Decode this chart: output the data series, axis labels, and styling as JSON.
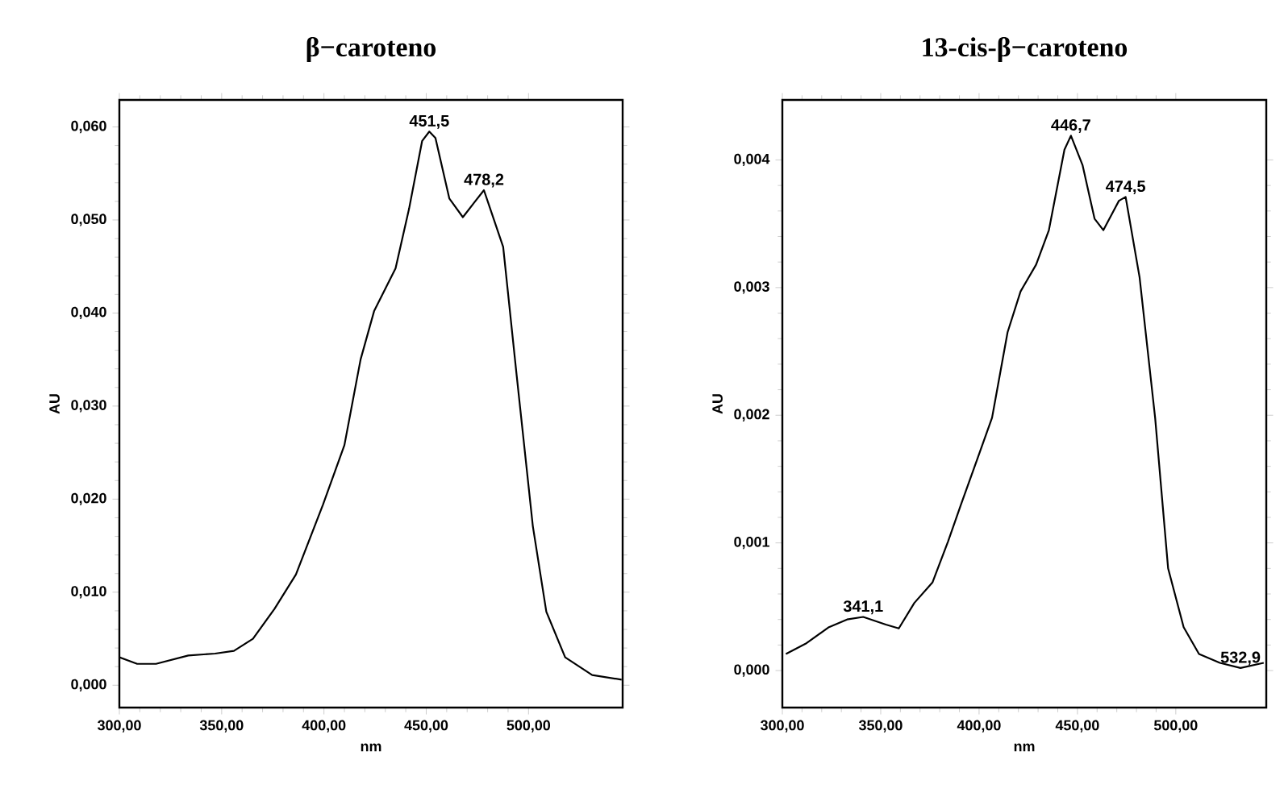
{
  "chart_data": [
    {
      "type": "line",
      "title": "β−caroteno",
      "xlabel": "nm",
      "ylabel": "AU",
      "xlim": [
        300,
        546
      ],
      "ylim": [
        -0.0024,
        0.0629
      ],
      "xticks": [
        {
          "value": 300,
          "label": "300,00"
        },
        {
          "value": 350,
          "label": "350,00"
        },
        {
          "value": 400,
          "label": "400,00"
        },
        {
          "value": 450,
          "label": "450,00"
        },
        {
          "value": 500,
          "label": "500,00"
        }
      ],
      "yticks": [
        {
          "value": 0,
          "label": "0,000"
        },
        {
          "value": 0.01,
          "label": "0,010"
        },
        {
          "value": 0.02,
          "label": "0,020"
        },
        {
          "value": 0.03,
          "label": "0,030"
        },
        {
          "value": 0.04,
          "label": "0,040"
        },
        {
          "value": 0.05,
          "label": "0,050"
        },
        {
          "value": 0.06,
          "label": "0,060"
        }
      ],
      "x": [
        300,
        308.7,
        317.9,
        333.7,
        346.8,
        356,
        365.3,
        375.8,
        386.3,
        399.5,
        410,
        417.9,
        424.5,
        435,
        441.6,
        448,
        451.5,
        454.5,
        461.3,
        467.9,
        473.2,
        478.2,
        487.6,
        494.2,
        502.1,
        508.7,
        517.9,
        531.1,
        545.5
      ],
      "series": [
        {
          "color": "#000000",
          "values": [
            0.003,
            0.0023,
            0.0023,
            0.0032,
            0.0034,
            0.0037,
            0.005,
            0.0082,
            0.0119,
            0.0194,
            0.0258,
            0.035,
            0.0402,
            0.0448,
            0.0512,
            0.0585,
            0.0595,
            0.0588,
            0.0523,
            0.0503,
            0.0518,
            0.0532,
            0.0471,
            0.0333,
            0.0171,
            0.0079,
            0.003,
            0.0011,
            0.0006
          ]
        }
      ],
      "annotations": [
        {
          "text": "451,5",
          "x": 451.5,
          "y": 0.0595
        },
        {
          "text": "478,2",
          "x": 478.2,
          "y": 0.0532
        }
      ]
    },
    {
      "type": "line",
      "title": "13-cis-β−caroteno",
      "xlabel": "nm",
      "ylabel": "AU",
      "xlim": [
        300,
        546
      ],
      "ylim": [
        -0.00029,
        0.00447
      ],
      "xticks": [
        {
          "value": 300,
          "label": "300,00"
        },
        {
          "value": 350,
          "label": "350,00"
        },
        {
          "value": 400,
          "label": "400,00"
        },
        {
          "value": 450,
          "label": "450,00"
        },
        {
          "value": 500,
          "label": "500,00"
        }
      ],
      "yticks": [
        {
          "value": 0,
          "label": "0,000"
        },
        {
          "value": 0.001,
          "label": "0,001"
        },
        {
          "value": 0.002,
          "label": "0,002"
        },
        {
          "value": 0.003,
          "label": "0,003"
        },
        {
          "value": 0.004,
          "label": "0,004"
        }
      ],
      "x": [
        301.8,
        311.8,
        323.7,
        332.9,
        341.1,
        352.6,
        359.2,
        367.1,
        376.3,
        384.2,
        390.8,
        398.7,
        406.6,
        414.5,
        421.1,
        429,
        435.5,
        443.4,
        446.7,
        452.6,
        458.7,
        463.2,
        471.1,
        474.5,
        481.6,
        489.5,
        496.1,
        504,
        511.8,
        522.4,
        532.9,
        544.7
      ],
      "series": [
        {
          "color": "#000000",
          "values": [
            0.00013,
            0.00021,
            0.00034,
            0.0004,
            0.00042,
            0.00036,
            0.00033,
            0.00053,
            0.00069,
            0.00101,
            0.0013,
            0.00164,
            0.00198,
            0.00265,
            0.00297,
            0.00318,
            0.00345,
            0.00408,
            0.00419,
            0.00396,
            0.00354,
            0.00345,
            0.00368,
            0.00371,
            0.00308,
            0.00198,
            0.0008,
            0.00034,
            0.00013,
            6e-05,
            2e-05,
            6e-05
          ]
        }
      ],
      "annotations": [
        {
          "text": "341,1",
          "x": 341.1,
          "y": 0.00042
        },
        {
          "text": "446,7",
          "x": 446.7,
          "y": 0.00419
        },
        {
          "text": "474,5",
          "x": 474.5,
          "y": 0.00371
        },
        {
          "text": "532,9",
          "x": 532.9,
          "y": 2e-05
        }
      ]
    }
  ]
}
